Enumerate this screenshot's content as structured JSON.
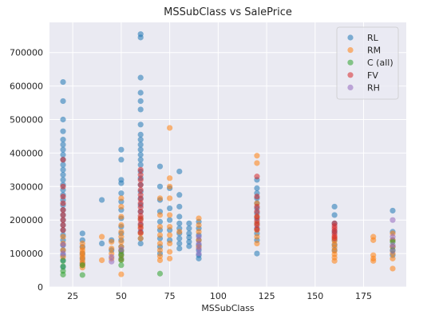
{
  "chart_data": {
    "type": "scatter",
    "title": "MSSubClass vs SalePrice",
    "xlabel": "MSSubClass",
    "ylabel": "",
    "xlim": [
      13,
      197
    ],
    "ylim": [
      0,
      790000
    ],
    "xticks": [
      25,
      50,
      75,
      100,
      125,
      150,
      175
    ],
    "xtick_labels": [
      "25",
      "50",
      "75",
      "100",
      "125",
      "150",
      "175"
    ],
    "yticks": [
      0,
      100000,
      200000,
      300000,
      400000,
      500000,
      600000,
      700000
    ],
    "ytick_labels": [
      "0",
      "100000",
      "200000",
      "300000",
      "400000",
      "500000",
      "600000",
      "700000"
    ],
    "grid": true,
    "background": "#eaeaf2",
    "legend_position": "top-right",
    "series": [
      {
        "name": "RL",
        "color": "#1f77b4",
        "points": [
          [
            20,
            612000
          ],
          [
            20,
            555000
          ],
          [
            20,
            500000
          ],
          [
            20,
            465000
          ],
          [
            20,
            440000
          ],
          [
            20,
            425000
          ],
          [
            20,
            410000
          ],
          [
            20,
            395000
          ],
          [
            20,
            380000
          ],
          [
            20,
            365000
          ],
          [
            20,
            350000
          ],
          [
            20,
            335000
          ],
          [
            20,
            320000
          ],
          [
            20,
            305000
          ],
          [
            20,
            290000
          ],
          [
            20,
            275000
          ],
          [
            20,
            260000
          ],
          [
            20,
            245000
          ],
          [
            20,
            230000
          ],
          [
            20,
            215000
          ],
          [
            20,
            200000
          ],
          [
            20,
            185000
          ],
          [
            20,
            170000
          ],
          [
            20,
            155000
          ],
          [
            20,
            140000
          ],
          [
            20,
            125000
          ],
          [
            20,
            110000
          ],
          [
            20,
            95000
          ],
          [
            20,
            80000
          ],
          [
            20,
            60000
          ],
          [
            30,
            160000
          ],
          [
            30,
            140000
          ],
          [
            30,
            120000
          ],
          [
            30,
            100000
          ],
          [
            30,
            85000
          ],
          [
            30,
            70000
          ],
          [
            40,
            260000
          ],
          [
            40,
            130000
          ],
          [
            45,
            140000
          ],
          [
            45,
            110000
          ],
          [
            50,
            410000
          ],
          [
            50,
            380000
          ],
          [
            50,
            320000
          ],
          [
            50,
            310000
          ],
          [
            50,
            280000
          ],
          [
            50,
            255000
          ],
          [
            50,
            230000
          ],
          [
            50,
            205000
          ],
          [
            50,
            180000
          ],
          [
            50,
            160000
          ],
          [
            50,
            140000
          ],
          [
            50,
            120000
          ],
          [
            50,
            100000
          ],
          [
            50,
            85000
          ],
          [
            60,
            755000
          ],
          [
            60,
            745000
          ],
          [
            60,
            625000
          ],
          [
            60,
            580000
          ],
          [
            60,
            555000
          ],
          [
            60,
            530000
          ],
          [
            60,
            485000
          ],
          [
            60,
            455000
          ],
          [
            60,
            440000
          ],
          [
            60,
            425000
          ],
          [
            60,
            410000
          ],
          [
            60,
            395000
          ],
          [
            60,
            380000
          ],
          [
            60,
            365000
          ],
          [
            60,
            345000
          ],
          [
            60,
            325000
          ],
          [
            60,
            305000
          ],
          [
            60,
            285000
          ],
          [
            60,
            265000
          ],
          [
            60,
            245000
          ],
          [
            60,
            225000
          ],
          [
            60,
            205000
          ],
          [
            60,
            185000
          ],
          [
            60,
            165000
          ],
          [
            60,
            145000
          ],
          [
            60,
            130000
          ],
          [
            70,
            360000
          ],
          [
            70,
            300000
          ],
          [
            70,
            260000
          ],
          [
            70,
            225000
          ],
          [
            70,
            195000
          ],
          [
            70,
            170000
          ],
          [
            70,
            145000
          ],
          [
            70,
            120000
          ],
          [
            70,
            100000
          ],
          [
            75,
            295000
          ],
          [
            75,
            235000
          ],
          [
            75,
            200000
          ],
          [
            75,
            170000
          ],
          [
            75,
            140000
          ],
          [
            80,
            345000
          ],
          [
            80,
            275000
          ],
          [
            80,
            240000
          ],
          [
            80,
            210000
          ],
          [
            80,
            190000
          ],
          [
            80,
            175000
          ],
          [
            80,
            160000
          ],
          [
            80,
            145000
          ],
          [
            80,
            130000
          ],
          [
            80,
            115000
          ],
          [
            85,
            190000
          ],
          [
            85,
            175000
          ],
          [
            85,
            160000
          ],
          [
            85,
            148000
          ],
          [
            85,
            135000
          ],
          [
            85,
            122000
          ],
          [
            90,
            195000
          ],
          [
            90,
            175000
          ],
          [
            90,
            155000
          ],
          [
            90,
            140000
          ],
          [
            90,
            125000
          ],
          [
            90,
            110000
          ],
          [
            90,
            95000
          ],
          [
            90,
            85000
          ],
          [
            120,
            320000
          ],
          [
            120,
            295000
          ],
          [
            120,
            280000
          ],
          [
            120,
            265000
          ],
          [
            120,
            250000
          ],
          [
            120,
            235000
          ],
          [
            120,
            220000
          ],
          [
            120,
            205000
          ],
          [
            120,
            190000
          ],
          [
            120,
            175000
          ],
          [
            120,
            160000
          ],
          [
            120,
            140000
          ],
          [
            120,
            100000
          ],
          [
            160,
            240000
          ],
          [
            160,
            215000
          ],
          [
            160,
            190000
          ],
          [
            160,
            165000
          ],
          [
            160,
            140000
          ],
          [
            160,
            125000
          ],
          [
            160,
            110000
          ],
          [
            190,
            228000
          ],
          [
            190,
            165000
          ],
          [
            190,
            140000
          ],
          [
            190,
            120000
          ],
          [
            190,
            95000
          ]
        ]
      },
      {
        "name": "RM",
        "color": "#ff7f0e",
        "points": [
          [
            20,
            150000
          ],
          [
            20,
            130000
          ],
          [
            20,
            110000
          ],
          [
            20,
            90000
          ],
          [
            30,
            130000
          ],
          [
            30,
            118000
          ],
          [
            30,
            110000
          ],
          [
            30,
            102000
          ],
          [
            30,
            95000
          ],
          [
            30,
            88000
          ],
          [
            30,
            80000
          ],
          [
            30,
            72000
          ],
          [
            30,
            65000
          ],
          [
            30,
            58000
          ],
          [
            40,
            150000
          ],
          [
            40,
            80000
          ],
          [
            45,
            135000
          ],
          [
            45,
            115000
          ],
          [
            45,
            100000
          ],
          [
            45,
            85000
          ],
          [
            50,
            265000
          ],
          [
            50,
            240000
          ],
          [
            50,
            210000
          ],
          [
            50,
            185000
          ],
          [
            50,
            165000
          ],
          [
            50,
            150000
          ],
          [
            50,
            135000
          ],
          [
            50,
            120000
          ],
          [
            50,
            108000
          ],
          [
            50,
            95000
          ],
          [
            50,
            82000
          ],
          [
            50,
            38000
          ],
          [
            60,
            205000
          ],
          [
            60,
            180000
          ],
          [
            60,
            160000
          ],
          [
            60,
            145000
          ],
          [
            70,
            265000
          ],
          [
            70,
            215000
          ],
          [
            70,
            180000
          ],
          [
            70,
            155000
          ],
          [
            70,
            130000
          ],
          [
            70,
            110000
          ],
          [
            70,
            92000
          ],
          [
            70,
            80000
          ],
          [
            75,
            475000
          ],
          [
            75,
            325000
          ],
          [
            75,
            300000
          ],
          [
            75,
            265000
          ],
          [
            75,
            215000
          ],
          [
            75,
            180000
          ],
          [
            75,
            155000
          ],
          [
            75,
            130000
          ],
          [
            75,
            105000
          ],
          [
            75,
            85000
          ],
          [
            80,
            165000
          ],
          [
            90,
            205000
          ],
          [
            90,
            185000
          ],
          [
            90,
            165000
          ],
          [
            90,
            140000
          ],
          [
            90,
            120000
          ],
          [
            120,
            392000
          ],
          [
            120,
            370000
          ],
          [
            120,
            250000
          ],
          [
            120,
            210000
          ],
          [
            120,
            190000
          ],
          [
            120,
            170000
          ],
          [
            120,
            150000
          ],
          [
            120,
            130000
          ],
          [
            160,
            148000
          ],
          [
            160,
            138000
          ],
          [
            160,
            128000
          ],
          [
            160,
            118000
          ],
          [
            160,
            108000
          ],
          [
            160,
            98000
          ],
          [
            160,
            88000
          ],
          [
            160,
            78000
          ],
          [
            180,
            150000
          ],
          [
            180,
            140000
          ],
          [
            180,
            95000
          ],
          [
            180,
            85000
          ],
          [
            180,
            78000
          ],
          [
            190,
            160000
          ],
          [
            190,
            140000
          ],
          [
            190,
            120000
          ],
          [
            190,
            100000
          ],
          [
            190,
            85000
          ],
          [
            190,
            55000
          ]
        ]
      },
      {
        "name": "C (all)",
        "color": "#2ca02c",
        "points": [
          [
            20,
            78000
          ],
          [
            20,
            62000
          ],
          [
            20,
            48000
          ],
          [
            20,
            37000
          ],
          [
            30,
            65000
          ],
          [
            30,
            36000
          ],
          [
            50,
            108000
          ],
          [
            50,
            95000
          ],
          [
            50,
            80000
          ],
          [
            50,
            65000
          ],
          [
            70,
            40000
          ],
          [
            190,
            135000
          ],
          [
            190,
            110000
          ]
        ]
      },
      {
        "name": "FV",
        "color": "#d62728",
        "points": [
          [
            20,
            380000
          ],
          [
            20,
            300000
          ],
          [
            20,
            270000
          ],
          [
            20,
            250000
          ],
          [
            20,
            230000
          ],
          [
            20,
            215000
          ],
          [
            20,
            200000
          ],
          [
            20,
            185000
          ],
          [
            20,
            170000
          ],
          [
            60,
            350000
          ],
          [
            60,
            335000
          ],
          [
            60,
            320000
          ],
          [
            60,
            305000
          ],
          [
            60,
            290000
          ],
          [
            60,
            275000
          ],
          [
            60,
            262000
          ],
          [
            60,
            250000
          ],
          [
            60,
            238000
          ],
          [
            60,
            225000
          ],
          [
            60,
            212000
          ],
          [
            60,
            200000
          ],
          [
            60,
            188000
          ],
          [
            60,
            175000
          ],
          [
            60,
            162000
          ],
          [
            120,
            330000
          ],
          [
            120,
            270000
          ],
          [
            120,
            240000
          ],
          [
            120,
            225000
          ],
          [
            120,
            210000
          ],
          [
            120,
            198000
          ],
          [
            120,
            185000
          ],
          [
            120,
            172000
          ],
          [
            160,
            190000
          ],
          [
            160,
            182000
          ],
          [
            160,
            175000
          ],
          [
            160,
            168000
          ],
          [
            160,
            160000
          ],
          [
            160,
            152000
          ],
          [
            160,
            145000
          ]
        ]
      },
      {
        "name": "RH",
        "color": "#9467bd",
        "points": [
          [
            20,
            126000
          ],
          [
            20,
            100000
          ],
          [
            45,
            90000
          ],
          [
            45,
            76000
          ],
          [
            50,
            112000
          ],
          [
            90,
            150000
          ],
          [
            90,
            130000
          ],
          [
            90,
            115000
          ],
          [
            90,
            100000
          ],
          [
            190,
            200000
          ],
          [
            190,
            150000
          ],
          [
            190,
            125000
          ],
          [
            190,
            108000
          ]
        ]
      }
    ]
  }
}
